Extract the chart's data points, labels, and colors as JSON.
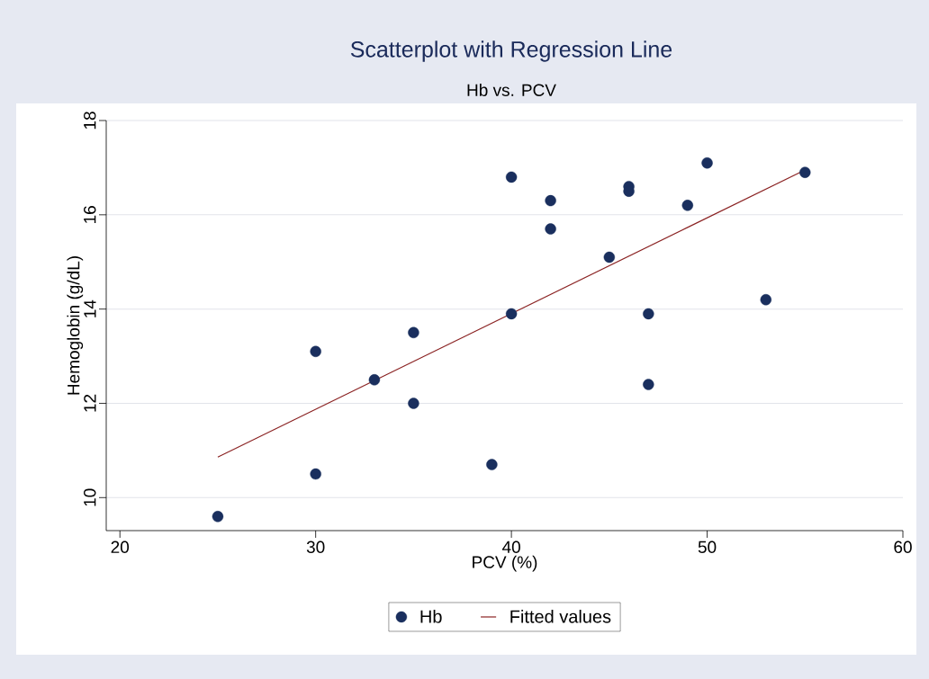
{
  "chart_data": {
    "type": "scatter",
    "title": "Scatterplot with Regression Line",
    "subtitle": "Hb vs. PCV",
    "xlabel": "PCV (%)",
    "ylabel": "Hemoglobin (g/dL)",
    "xlim": [
      19.3,
      60
    ],
    "ylim": [
      9.3,
      18
    ],
    "xticks": [
      20,
      30,
      40,
      50,
      60
    ],
    "yticks": [
      10,
      12,
      14,
      16,
      18
    ],
    "grid": "y",
    "legend": "bottom",
    "series": [
      {
        "name": "Hb",
        "type": "scatter",
        "marker": "circle",
        "color": "#1a2f5e",
        "x": [
          25,
          30,
          30,
          33,
          35,
          35,
          39,
          40,
          40,
          42,
          42,
          45,
          46,
          46,
          47,
          47,
          49,
          50,
          53,
          55
        ],
        "values": [
          9.6,
          10.5,
          13.1,
          12.5,
          13.5,
          12.0,
          10.7,
          16.8,
          13.9,
          16.3,
          15.7,
          15.1,
          16.6,
          16.5,
          13.9,
          12.4,
          16.2,
          17.1,
          14.2,
          16.9
        ]
      },
      {
        "name": "Fitted values",
        "type": "line",
        "color": "#8b2323",
        "x": [
          25,
          55
        ],
        "values": [
          10.86,
          16.95
        ]
      }
    ]
  }
}
